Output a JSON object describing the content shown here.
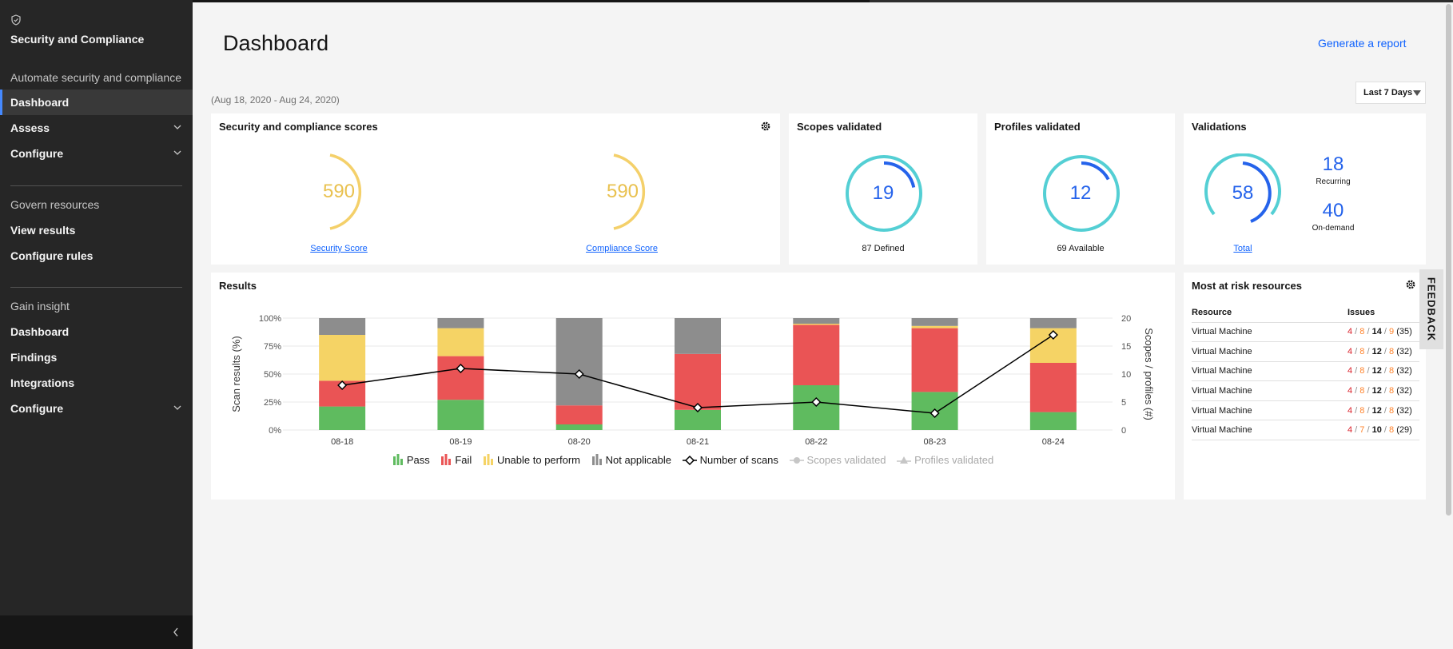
{
  "sidebar": {
    "title": "Security and Compliance",
    "sections": [
      {
        "heading": "Automate security and compliance",
        "items": [
          {
            "label": "Dashboard",
            "active": true
          },
          {
            "label": "Assess",
            "expandable": true
          },
          {
            "label": "Configure",
            "expandable": true
          }
        ]
      },
      {
        "heading": "Govern resources",
        "items": [
          {
            "label": "View results"
          },
          {
            "label": "Configure rules"
          }
        ]
      },
      {
        "heading": "Gain insight",
        "items": [
          {
            "label": "Dashboard"
          },
          {
            "label": "Findings"
          },
          {
            "label": "Integrations"
          },
          {
            "label": "Configure",
            "expandable": true
          }
        ]
      }
    ]
  },
  "header": {
    "title": "Dashboard",
    "generate_report": "Generate a report",
    "date_range": "(Aug 18, 2020 - Aug 24, 2020)",
    "period": "Last 7 Days"
  },
  "scores_card": {
    "title": "Security and compliance scores",
    "security": {
      "value": "590",
      "label": "Security Score"
    },
    "compliance": {
      "value": "590",
      "label": "Compliance Score"
    }
  },
  "scopes_card": {
    "title": "Scopes validated",
    "value": "19",
    "caption": "87 Defined",
    "fraction": 0.2184
  },
  "profiles_card": {
    "title": "Profiles validated",
    "value": "12",
    "caption": "69 Available",
    "fraction": 0.1739
  },
  "validations_card": {
    "title": "Validations",
    "total": "58",
    "total_label": "Total",
    "recurring": "18",
    "recurring_label": "Recurring",
    "on_demand": "40",
    "on_demand_label": "On-demand"
  },
  "results_card": {
    "title": "Results"
  },
  "risk_card": {
    "title": "Most at risk resources",
    "col_resource": "Resource",
    "col_issues": "Issues",
    "rows": [
      {
        "resource": "Virtual Machine",
        "c": "4",
        "h": "8",
        "m": "14",
        "l": "9",
        "total": "(35)"
      },
      {
        "resource": "Virtual Machine",
        "c": "4",
        "h": "8",
        "m": "12",
        "l": "8",
        "total": "(32)"
      },
      {
        "resource": "Virtual Machine",
        "c": "4",
        "h": "8",
        "m": "12",
        "l": "8",
        "total": "(32)"
      },
      {
        "resource": "Virtual Machine",
        "c": "4",
        "h": "8",
        "m": "12",
        "l": "8",
        "total": "(32)"
      },
      {
        "resource": "Virtual Machine",
        "c": "4",
        "h": "8",
        "m": "12",
        "l": "8",
        "total": "(32)"
      },
      {
        "resource": "Virtual Machine",
        "c": "4",
        "h": "7",
        "m": "10",
        "l": "8",
        "total": "(29)"
      }
    ]
  },
  "feedback": "FEEDBACK",
  "colors": {
    "pass": "#5fbb5f",
    "fail": "#ea5455",
    "unable": "#f5d365",
    "na": "#8d8d8d",
    "score_ring": "#f4d06a",
    "teal": "#54cfd4",
    "blue": "#2563eb"
  },
  "chart_data": {
    "type": "bar",
    "stacked": true,
    "categories": [
      "08-18",
      "08-19",
      "08-20",
      "08-21",
      "08-22",
      "08-23",
      "08-24"
    ],
    "series": [
      {
        "name": "Pass",
        "values": [
          21,
          27,
          5,
          18,
          40,
          34,
          16
        ]
      },
      {
        "name": "Fail",
        "values": [
          23,
          39,
          17,
          50,
          54,
          57,
          44
        ]
      },
      {
        "name": "Unable to perform",
        "values": [
          41,
          25,
          0,
          0,
          1,
          2,
          31
        ]
      },
      {
        "name": "Not applicable",
        "values": [
          15,
          9,
          78,
          32,
          5,
          7,
          9
        ]
      }
    ],
    "line_series": [
      {
        "name": "Number of scans",
        "values": [
          8,
          11,
          10,
          4,
          5,
          3,
          17
        ],
        "axis": "right"
      },
      {
        "name": "Scopes validated",
        "values": [],
        "hidden": true
      },
      {
        "name": "Profiles validated",
        "values": [],
        "hidden": true
      }
    ],
    "ylabel": "Scan results (%)",
    "y2label": "Scopes / profiles (#)",
    "yticks": [
      "0%",
      "25%",
      "50%",
      "75%",
      "100%"
    ],
    "ylim": [
      0,
      100
    ],
    "y2ticks": [
      "0",
      "5",
      "10",
      "15",
      "20"
    ],
    "y2lim": [
      0,
      20
    ],
    "legend": [
      "Pass",
      "Fail",
      "Unable to perform",
      "Not applicable",
      "Number of scans",
      "Scopes validated",
      "Profiles validated"
    ]
  }
}
